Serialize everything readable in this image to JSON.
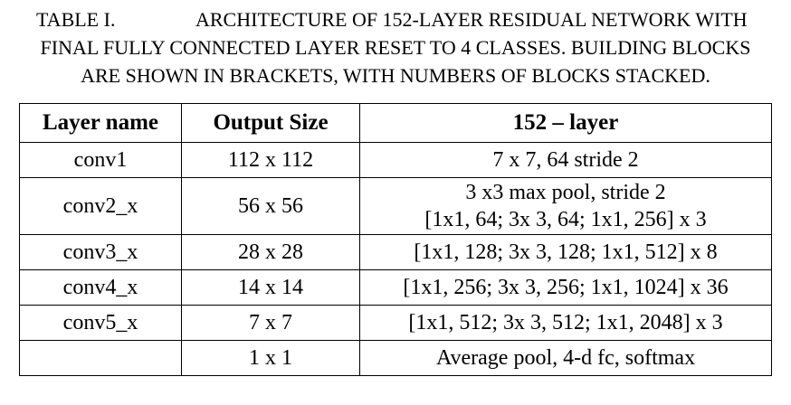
{
  "caption": {
    "table_label": "TABLE I.",
    "line1": "ARCHITECTURE OF 152-LAYER RESIDUAL NETWORK WITH",
    "line2": "FINAL FULLY CONNECTED LAYER RESET TO 4 CLASSES. BUILDING BLOCKS",
    "line3": "ARE SHOWN IN BRACKETS, WITH NUMBERS OF BLOCKS STACKED."
  },
  "table": {
    "headers": [
      "Layer name",
      "Output Size",
      "152 – layer"
    ],
    "rows": [
      {
        "name": "conv1",
        "size": "112 x 112",
        "layer": [
          "7 x 7, 64 stride 2"
        ]
      },
      {
        "name": "conv2_x",
        "size": "56 x 56",
        "layer": [
          "3 x3 max pool, stride 2",
          "[1x1, 64; 3x 3, 64; 1x1, 256] x 3"
        ]
      },
      {
        "name": "conv3_x",
        "size": "28 x 28",
        "layer": [
          "[1x1, 128; 3x 3, 128; 1x1, 512] x 8"
        ]
      },
      {
        "name": "conv4_x",
        "size": "14 x 14",
        "layer": [
          "[1x1, 256; 3x 3, 256; 1x1, 1024] x 36"
        ]
      },
      {
        "name": "conv5_x",
        "size": "7 x 7",
        "layer": [
          "[1x1, 512; 3x 3, 512; 1x1, 2048] x 3"
        ]
      },
      {
        "name": "",
        "size": "1 x 1",
        "layer": [
          "Average pool, 4-d fc, softmax"
        ]
      }
    ]
  }
}
